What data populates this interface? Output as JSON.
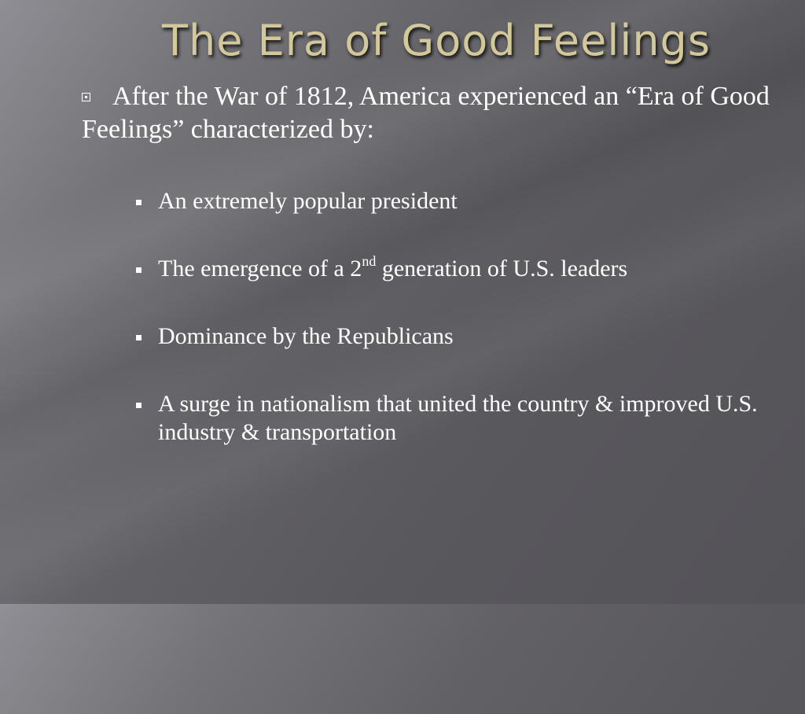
{
  "slide": {
    "title": "The Era of Good Feelings",
    "main_bullet": "After the War of 1812, America experienced an “Era of Good Feelings” characterized by:",
    "sub_bullets": [
      {
        "text": "An extremely popular president"
      },
      {
        "text_before": "The emergence of a 2",
        "superscript": "nd",
        "text_after": " generation of U.S. leaders"
      },
      {
        "text": "Dominance by the Republicans"
      },
      {
        "text": "A surge in nationalism that united the country & improved U.S. industry & transportation"
      }
    ]
  }
}
